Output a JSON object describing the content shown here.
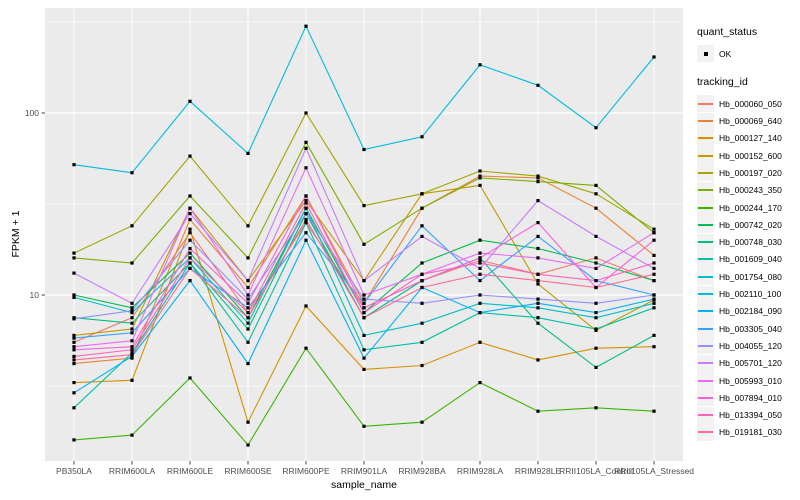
{
  "chart_data": {
    "type": "line",
    "title": "",
    "xlabel": "sample_name",
    "ylabel": "FPKM + 1",
    "y_scale": "log10",
    "ylim": [
      1.2,
      380
    ],
    "y_major_ticks": [
      10,
      100
    ],
    "y_minor_gridlines": [
      3.162,
      31.62,
      316.2
    ],
    "grid": "white gridlines on gray panel",
    "legend_position": "right",
    "panel_bg": "#EBEBEB",
    "gridline_color": "#FFFFFF",
    "point_shape": "small filled black square",
    "categories": [
      "PB350LA",
      "RRIM600LA",
      "RRIM600LE",
      "RRIM600SE",
      "RRIM600PE",
      "RRIM901LA",
      "RRIM928BA",
      "RRIM928LA",
      "RRIM928LE",
      "RRII105LA_Control",
      "RRII105LA_Stressed"
    ],
    "series": [
      {
        "name": "Hb_000060_050",
        "color": "#F8766D",
        "values": [
          5.5,
          7.5,
          22,
          8,
          25,
          8.5,
          12,
          15.5,
          13,
          16,
          12
        ]
      },
      {
        "name": "Hb_000069_640",
        "color": "#EA8331",
        "values": [
          4.2,
          4.5,
          26,
          11,
          35,
          9,
          30,
          45,
          44,
          30,
          16.5
        ]
      },
      {
        "name": "Hb_000127_140",
        "color": "#D89000",
        "values": [
          3.3,
          3.4,
          23,
          2.0,
          8.7,
          3.9,
          4.1,
          5.5,
          4.4,
          5.1,
          5.2
        ]
      },
      {
        "name": "Hb_000152_600",
        "color": "#C09B00",
        "values": [
          6.0,
          6.5,
          30,
          12,
          33,
          12,
          36,
          40,
          11.5,
          6.4,
          9.4
        ]
      },
      {
        "name": "Hb_000197_020",
        "color": "#A3A500",
        "values": [
          17,
          24,
          58,
          24,
          100,
          31,
          36,
          48,
          45,
          36,
          23
        ]
      },
      {
        "name": "Hb_000243_350",
        "color": "#7CAE00",
        "values": [
          16,
          15,
          35,
          16,
          69,
          19,
          30,
          44,
          42,
          40,
          22
        ]
      },
      {
        "name": "Hb_000244_170",
        "color": "#39B600",
        "values": [
          1.6,
          1.7,
          3.5,
          1.5,
          5.1,
          1.9,
          2.0,
          3.3,
          2.3,
          2.4,
          2.3
        ]
      },
      {
        "name": "Hb_000742_020",
        "color": "#00BB4E",
        "values": [
          10,
          8.5,
          17,
          7.5,
          30,
          8,
          15,
          20,
          18,
          15,
          12
        ]
      },
      {
        "name": "Hb_000748_030",
        "color": "#00BF7D",
        "values": [
          7.5,
          7,
          15,
          6.5,
          28,
          7.5,
          12,
          16,
          7,
          4,
          6
        ]
      },
      {
        "name": "Hb_001609_040",
        "color": "#00C1A3",
        "values": [
          2.4,
          4.8,
          15,
          5.5,
          25,
          5,
          5.5,
          8,
          7.5,
          6.5,
          8.5
        ]
      },
      {
        "name": "Hb_001754_080",
        "color": "#00BFC4",
        "values": [
          9.7,
          8,
          16,
          7,
          30,
          6,
          7,
          9,
          8.5,
          7.5,
          9
        ]
      },
      {
        "name": "Hb_002110_100",
        "color": "#00BAE0",
        "values": [
          52,
          47,
          116,
          60,
          300,
          63,
          74,
          184,
          142,
          83,
          203
        ]
      },
      {
        "name": "Hb_002184_090",
        "color": "#00B0F6",
        "values": [
          2.9,
          4.6,
          12,
          4.2,
          20,
          4.5,
          11,
          8,
          9,
          8,
          9.5
        ]
      },
      {
        "name": "Hb_003305_040",
        "color": "#35A2FF",
        "values": [
          5.8,
          6.2,
          14,
          8.5,
          22,
          9,
          24,
          12,
          21,
          12,
          10
        ]
      },
      {
        "name": "Hb_004055_120",
        "color": "#9590FF",
        "values": [
          7.4,
          8.2,
          20,
          9.5,
          28,
          9.5,
          9,
          10,
          9.5,
          9,
          10
        ]
      },
      {
        "name": "Hb_005701_120",
        "color": "#C77CFF",
        "values": [
          13.2,
          9,
          28,
          12,
          64,
          12,
          21,
          14,
          33,
          21,
          14
        ]
      },
      {
        "name": "Hb_005993_010",
        "color": "#E76BF3",
        "values": [
          5.2,
          5.6,
          30,
          10,
          50,
          10,
          13,
          17,
          16,
          14,
          22
        ]
      },
      {
        "name": "Hb_007894_010",
        "color": "#FA62DB",
        "values": [
          5.0,
          5.2,
          18,
          9,
          35,
          8.5,
          12,
          16,
          25,
          11,
          20
        ]
      },
      {
        "name": "Hb_013394_050",
        "color": "#FF62BC",
        "values": [
          4.6,
          5.0,
          16,
          8,
          32,
          8,
          13,
          15,
          13,
          12,
          15
        ]
      },
      {
        "name": "Hb_019181_030",
        "color": "#FF6A98",
        "values": [
          4.4,
          4.7,
          14,
          7.5,
          26,
          7.5,
          11,
          13,
          12,
          11,
          13
        ]
      }
    ]
  },
  "legend": {
    "quant_status": {
      "title": "quant_status",
      "ok_label": "OK",
      "marker": "black-square"
    },
    "tracking": {
      "title": "tracking_id"
    }
  }
}
